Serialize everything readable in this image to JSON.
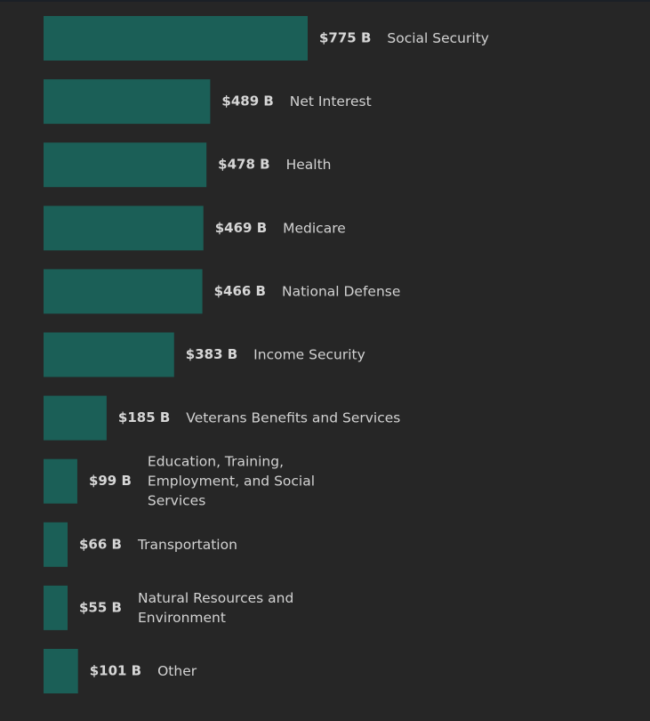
{
  "chart_data": {
    "type": "bar",
    "orientation": "horizontal",
    "unit_suffix": " B",
    "unit_prefix": "$",
    "categories": [
      "Social Security",
      "Net Interest",
      "Health",
      "Medicare",
      "National Defense",
      "Income Security",
      "Veterans Benefits and Services",
      "Education, Training, Employment, and Social Services",
      "Transportation",
      "Natural Resources and Environment",
      "Other"
    ],
    "category_lines": [
      [
        "Social Security"
      ],
      [
        "Net Interest"
      ],
      [
        "Health"
      ],
      [
        "Medicare"
      ],
      [
        "National Defense"
      ],
      [
        "Income Security"
      ],
      [
        "Veterans Benefits and Services"
      ],
      [
        "Education, Training,",
        "Employment, and Social",
        "Services"
      ],
      [
        "Transportation"
      ],
      [
        "Natural Resources and",
        "Environment"
      ],
      [
        "Other"
      ]
    ],
    "values": [
      775,
      489,
      478,
      469,
      466,
      383,
      185,
      99,
      66,
      55,
      101
    ],
    "value_labels": [
      "$775 B",
      "$489 B",
      "$478 B",
      "$469 B",
      "$466 B",
      "$383 B",
      "$185 B",
      "$99 B",
      "$66 B",
      "$55 B",
      "$101 B"
    ],
    "color": "#1b5f57",
    "grid": false
  }
}
